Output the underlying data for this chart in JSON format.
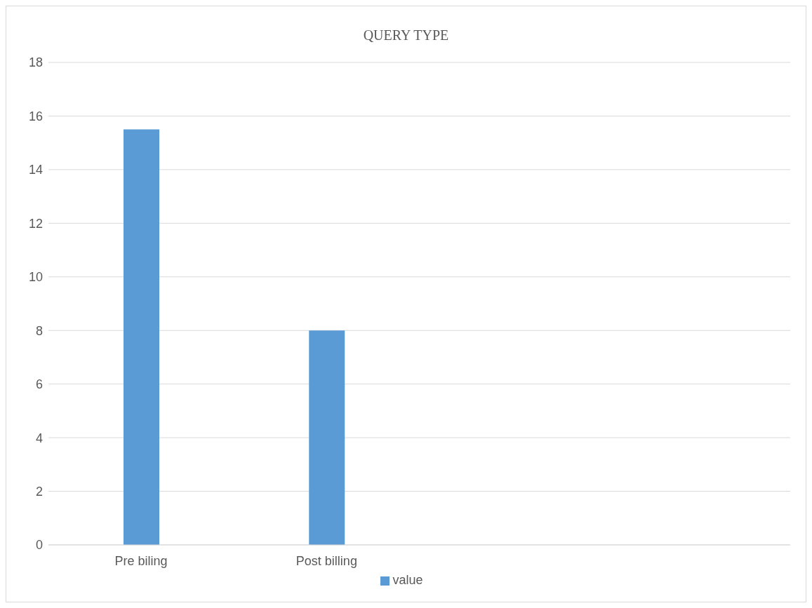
{
  "chart_data": {
    "type": "bar",
    "title": "QUERY TYPE",
    "categories": [
      "Pre biling",
      "Post billing",
      null,
      null
    ],
    "series": [
      {
        "name": "value",
        "color": "#5b9bd5",
        "values": [
          15.5,
          8,
          null,
          null
        ]
      }
    ],
    "ylim": [
      0,
      18
    ],
    "yticks": [
      0,
      2,
      4,
      6,
      8,
      10,
      12,
      14,
      16,
      18
    ],
    "grid": "y",
    "legend": "bottom"
  }
}
